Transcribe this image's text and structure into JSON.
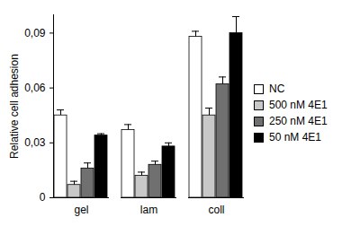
{
  "chart_data": {
    "type": "bar",
    "y_label": "Relative cell adhesion",
    "categories": [
      "gel",
      "lam",
      "coll"
    ],
    "series": [
      {
        "name": "NC",
        "color": "#ffffff",
        "values": [
          0.045,
          0.037,
          0.088
        ],
        "errors": [
          0.003,
          0.003,
          0.003
        ]
      },
      {
        "name": "500 nM 4E1",
        "color": "#c8c8c8",
        "values": [
          0.007,
          0.012,
          0.045
        ],
        "errors": [
          0.002,
          0.002,
          0.004
        ]
      },
      {
        "name": "250 nM 4E1",
        "color": "#707070",
        "values": [
          0.016,
          0.018,
          0.062
        ],
        "errors": [
          0.003,
          0.002,
          0.004
        ]
      },
      {
        "name": "50 nM 4E1",
        "color": "#000000",
        "values": [
          0.034,
          0.028,
          0.09
        ],
        "errors": [
          0.001,
          0.002,
          0.009
        ]
      }
    ],
    "ylim": [
      0,
      0.1
    ],
    "yticks": [
      0,
      {
        "value": 0.03,
        "label": "0,03"
      },
      {
        "value": 0.06,
        "label": "0,06"
      },
      {
        "value": 0.09,
        "label": "0,09"
      }
    ],
    "legend": "right"
  }
}
